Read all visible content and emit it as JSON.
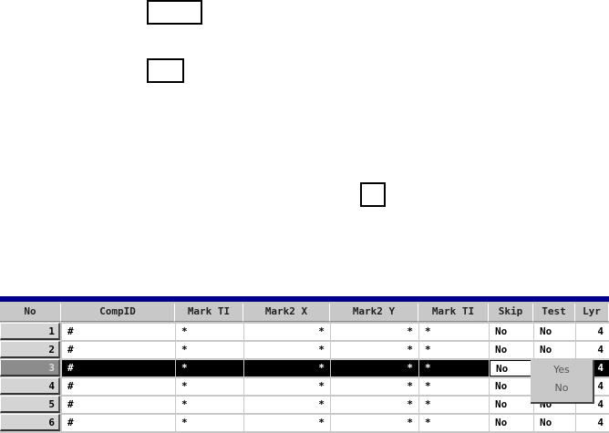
{
  "table": {
    "columns": [
      "No",
      "CompID",
      "Mark TI",
      "Mark2 X",
      "Mark2 Y",
      "Mark TI",
      "Skip",
      "Test",
      "Lyr"
    ],
    "rows": [
      {
        "no": "1",
        "cells": [
          "#",
          "*",
          "*",
          "*",
          "*",
          "No",
          "No",
          "4"
        ]
      },
      {
        "no": "2",
        "cells": [
          "#",
          "*",
          "*",
          "*",
          "*",
          "No",
          "No",
          "4"
        ]
      },
      {
        "no": "3",
        "cells": [
          "#",
          "*",
          "*",
          "*",
          "*",
          "No",
          "",
          "4"
        ],
        "selected": true
      },
      {
        "no": "4",
        "cells": [
          "#",
          "*",
          "*",
          "*",
          "*",
          "No",
          "No",
          "4"
        ]
      },
      {
        "no": "5",
        "cells": [
          "#",
          "*",
          "*",
          "*",
          "*",
          "No",
          "No",
          "4"
        ]
      },
      {
        "no": "6",
        "cells": [
          "#",
          "*",
          "*",
          "*",
          "*",
          "No",
          "No",
          "4"
        ]
      }
    ]
  },
  "dropdown": {
    "options": [
      "Yes",
      "No"
    ]
  },
  "colors": {
    "header_bar": "#00008b",
    "selected_row": "#000000"
  }
}
